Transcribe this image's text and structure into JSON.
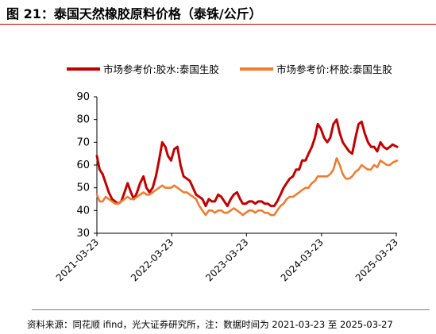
{
  "title": "图 21：泰国天然橡胶原料价格（泰铢/公斤）",
  "source": "资料来源：同花顺 ifind，光大证券研究所，注：数据时间为 2021-03-23 至 2025-03-27",
  "colors": {
    "accent_rule": "#c00000",
    "series_0": "#c00000",
    "series_1": "#ed7d31"
  },
  "chart_data": {
    "type": "line",
    "title": "",
    "xlabel": "",
    "ylabel": "",
    "ylim": [
      30,
      90
    ],
    "yticks": [
      30,
      40,
      50,
      60,
      70,
      80,
      90
    ],
    "xlim": [
      "2021-03-23",
      "2025-03-27"
    ],
    "xticks": [
      "2021-03-23",
      "2022-03-23",
      "2023-03-23",
      "2024-03-23",
      "2025-03-23"
    ],
    "grid": false,
    "legend_position": "top",
    "series": [
      {
        "name": "市场参考价:胶水:泰国生胶",
        "color": "#c00000",
        "points": [
          [
            "2021-03-23",
            64
          ],
          [
            "2021-04-05",
            58
          ],
          [
            "2021-04-20",
            56
          ],
          [
            "2021-05-05",
            52
          ],
          [
            "2021-05-20",
            48
          ],
          [
            "2021-06-05",
            45
          ],
          [
            "2021-06-20",
            44
          ],
          [
            "2021-07-05",
            43
          ],
          [
            "2021-07-20",
            44
          ],
          [
            "2021-08-05",
            48
          ],
          [
            "2021-08-20",
            52
          ],
          [
            "2021-09-05",
            48
          ],
          [
            "2021-09-20",
            45
          ],
          [
            "2021-10-05",
            48
          ],
          [
            "2021-10-20",
            52
          ],
          [
            "2021-11-05",
            55
          ],
          [
            "2021-11-20",
            50
          ],
          [
            "2021-12-05",
            48
          ],
          [
            "2021-12-20",
            50
          ],
          [
            "2022-01-05",
            55
          ],
          [
            "2022-01-20",
            62
          ],
          [
            "2022-02-05",
            70
          ],
          [
            "2022-02-20",
            68
          ],
          [
            "2022-03-05",
            64
          ],
          [
            "2022-03-20",
            62
          ],
          [
            "2022-04-05",
            67
          ],
          [
            "2022-04-20",
            68
          ],
          [
            "2022-05-05",
            60
          ],
          [
            "2022-05-20",
            55
          ],
          [
            "2022-06-05",
            54
          ],
          [
            "2022-06-20",
            53
          ],
          [
            "2022-07-05",
            50
          ],
          [
            "2022-07-20",
            47
          ],
          [
            "2022-08-05",
            46
          ],
          [
            "2022-08-20",
            45
          ],
          [
            "2022-09-05",
            42
          ],
          [
            "2022-09-20",
            45
          ],
          [
            "2022-10-05",
            44
          ],
          [
            "2022-10-20",
            44
          ],
          [
            "2022-11-05",
            47
          ],
          [
            "2022-11-20",
            46
          ],
          [
            "2022-12-05",
            44
          ],
          [
            "2022-12-20",
            42
          ],
          [
            "2023-01-05",
            45
          ],
          [
            "2023-01-20",
            47
          ],
          [
            "2023-02-05",
            48
          ],
          [
            "2023-02-20",
            45
          ],
          [
            "2023-03-05",
            43
          ],
          [
            "2023-03-20",
            43
          ],
          [
            "2023-04-05",
            44
          ],
          [
            "2023-04-20",
            44
          ],
          [
            "2023-05-05",
            43
          ],
          [
            "2023-05-20",
            44
          ],
          [
            "2023-06-05",
            44
          ],
          [
            "2023-06-20",
            43
          ],
          [
            "2023-07-05",
            43
          ],
          [
            "2023-07-20",
            42
          ],
          [
            "2023-08-05",
            42
          ],
          [
            "2023-08-20",
            44
          ],
          [
            "2023-09-05",
            47
          ],
          [
            "2023-09-20",
            50
          ],
          [
            "2023-10-05",
            52
          ],
          [
            "2023-10-20",
            54
          ],
          [
            "2023-11-05",
            55
          ],
          [
            "2023-11-20",
            58
          ],
          [
            "2023-12-05",
            58
          ],
          [
            "2023-12-20",
            62
          ],
          [
            "2024-01-05",
            62
          ],
          [
            "2024-01-20",
            65
          ],
          [
            "2024-02-05",
            68
          ],
          [
            "2024-02-20",
            72
          ],
          [
            "2024-03-05",
            78
          ],
          [
            "2024-03-20",
            76
          ],
          [
            "2024-04-05",
            72
          ],
          [
            "2024-04-20",
            70
          ],
          [
            "2024-05-05",
            72
          ],
          [
            "2024-05-20",
            78
          ],
          [
            "2024-06-05",
            80
          ],
          [
            "2024-06-20",
            74
          ],
          [
            "2024-07-05",
            70
          ],
          [
            "2024-07-20",
            68
          ],
          [
            "2024-08-05",
            66
          ],
          [
            "2024-08-20",
            65
          ],
          [
            "2024-09-05",
            72
          ],
          [
            "2024-09-20",
            78
          ],
          [
            "2024-10-05",
            79
          ],
          [
            "2024-10-20",
            74
          ],
          [
            "2024-11-05",
            70
          ],
          [
            "2024-11-20",
            68
          ],
          [
            "2024-12-05",
            68
          ],
          [
            "2024-12-20",
            66
          ],
          [
            "2025-01-05",
            70
          ],
          [
            "2025-01-20",
            68
          ],
          [
            "2025-02-05",
            67
          ],
          [
            "2025-02-20",
            68
          ],
          [
            "2025-03-05",
            69
          ],
          [
            "2025-03-27",
            68
          ]
        ]
      },
      {
        "name": "市场参考价:杯胶:泰国生胶",
        "color": "#ed7d31",
        "points": [
          [
            "2021-03-23",
            47
          ],
          [
            "2021-04-05",
            44
          ],
          [
            "2021-04-20",
            44
          ],
          [
            "2021-05-05",
            46
          ],
          [
            "2021-05-20",
            45
          ],
          [
            "2021-06-05",
            44
          ],
          [
            "2021-06-20",
            43
          ],
          [
            "2021-07-05",
            43
          ],
          [
            "2021-07-20",
            44
          ],
          [
            "2021-08-05",
            45
          ],
          [
            "2021-08-20",
            46
          ],
          [
            "2021-09-05",
            45
          ],
          [
            "2021-09-20",
            45
          ],
          [
            "2021-10-05",
            46
          ],
          [
            "2021-10-20",
            47
          ],
          [
            "2021-11-05",
            48
          ],
          [
            "2021-11-20",
            47
          ],
          [
            "2021-12-05",
            47
          ],
          [
            "2021-12-20",
            48
          ],
          [
            "2022-01-05",
            49
          ],
          [
            "2022-01-20",
            50
          ],
          [
            "2022-02-05",
            51
          ],
          [
            "2022-02-20",
            50
          ],
          [
            "2022-03-05",
            50
          ],
          [
            "2022-03-20",
            50
          ],
          [
            "2022-04-05",
            51
          ],
          [
            "2022-04-20",
            50
          ],
          [
            "2022-05-05",
            49
          ],
          [
            "2022-05-20",
            48
          ],
          [
            "2022-06-05",
            48
          ],
          [
            "2022-06-20",
            47
          ],
          [
            "2022-07-05",
            46
          ],
          [
            "2022-07-20",
            45
          ],
          [
            "2022-08-05",
            42
          ],
          [
            "2022-08-20",
            40
          ],
          [
            "2022-09-05",
            38
          ],
          [
            "2022-09-20",
            40
          ],
          [
            "2022-10-05",
            40
          ],
          [
            "2022-10-20",
            39
          ],
          [
            "2022-11-05",
            40
          ],
          [
            "2022-11-20",
            40
          ],
          [
            "2022-12-05",
            39
          ],
          [
            "2022-12-20",
            39
          ],
          [
            "2023-01-05",
            40
          ],
          [
            "2023-01-20",
            41
          ],
          [
            "2023-02-05",
            40
          ],
          [
            "2023-02-20",
            39
          ],
          [
            "2023-03-05",
            38
          ],
          [
            "2023-03-20",
            39
          ],
          [
            "2023-04-05",
            40
          ],
          [
            "2023-04-20",
            40
          ],
          [
            "2023-05-05",
            39
          ],
          [
            "2023-05-20",
            40
          ],
          [
            "2023-06-05",
            40
          ],
          [
            "2023-06-20",
            39
          ],
          [
            "2023-07-05",
            39
          ],
          [
            "2023-07-20",
            38
          ],
          [
            "2023-08-05",
            38
          ],
          [
            "2023-08-20",
            40
          ],
          [
            "2023-09-05",
            42
          ],
          [
            "2023-09-20",
            43
          ],
          [
            "2023-10-05",
            45
          ],
          [
            "2023-10-20",
            46
          ],
          [
            "2023-11-05",
            46
          ],
          [
            "2023-11-20",
            47
          ],
          [
            "2023-12-05",
            48
          ],
          [
            "2023-12-20",
            49
          ],
          [
            "2024-01-05",
            50
          ],
          [
            "2024-01-20",
            50
          ],
          [
            "2024-02-05",
            52
          ],
          [
            "2024-02-20",
            53
          ],
          [
            "2024-03-05",
            55
          ],
          [
            "2024-03-20",
            55
          ],
          [
            "2024-04-05",
            55
          ],
          [
            "2024-04-20",
            55
          ],
          [
            "2024-05-05",
            56
          ],
          [
            "2024-05-20",
            58
          ],
          [
            "2024-06-05",
            63
          ],
          [
            "2024-06-20",
            60
          ],
          [
            "2024-07-05",
            56
          ],
          [
            "2024-07-20",
            54
          ],
          [
            "2024-08-05",
            54
          ],
          [
            "2024-08-20",
            55
          ],
          [
            "2024-09-05",
            57
          ],
          [
            "2024-09-20",
            58
          ],
          [
            "2024-10-05",
            60
          ],
          [
            "2024-10-20",
            59
          ],
          [
            "2024-11-05",
            58
          ],
          [
            "2024-11-20",
            58
          ],
          [
            "2024-12-05",
            60
          ],
          [
            "2024-12-20",
            59
          ],
          [
            "2025-01-05",
            62
          ],
          [
            "2025-01-20",
            61
          ],
          [
            "2025-02-05",
            60
          ],
          [
            "2025-02-20",
            60
          ],
          [
            "2025-03-05",
            61
          ],
          [
            "2025-03-27",
            62
          ]
        ]
      }
    ]
  }
}
